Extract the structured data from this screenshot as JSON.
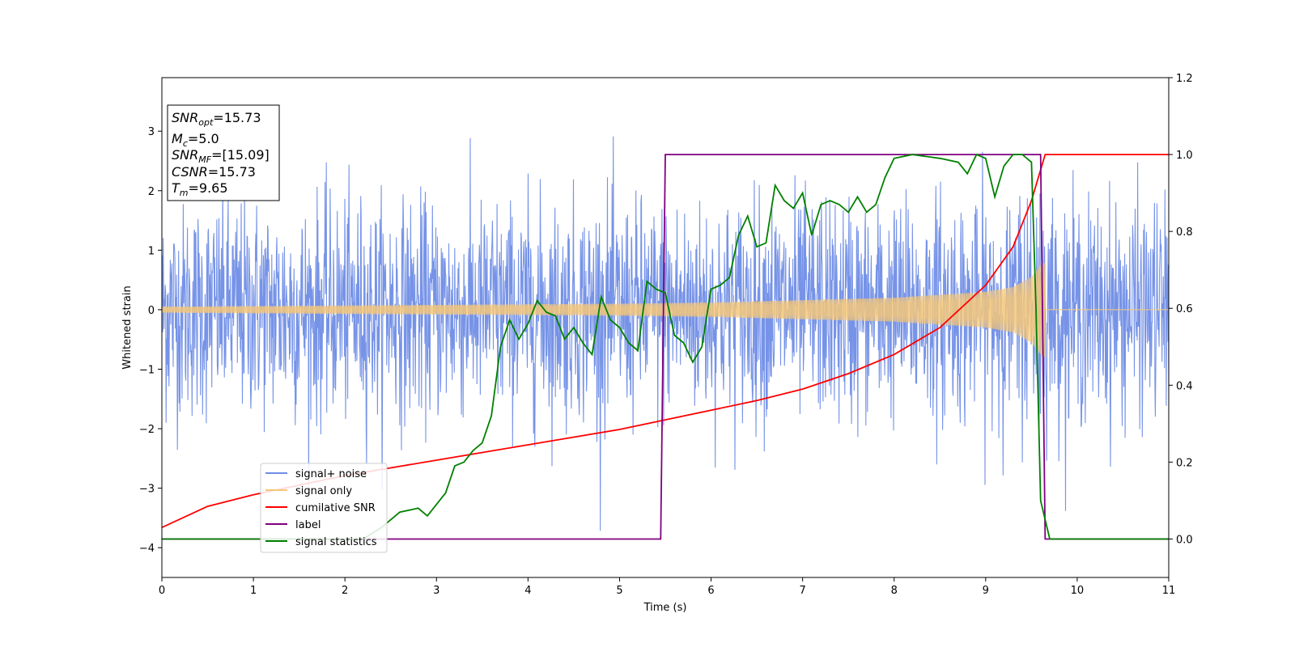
{
  "chart_data": {
    "type": "line",
    "xlabel": "Time (s)",
    "ylabel": "Whitened strain",
    "xlim": [
      0,
      11
    ],
    "ylim_left": [
      -4.5,
      3.9
    ],
    "ylim_right": [
      -0.1,
      1.2
    ],
    "x_ticks": [
      "0",
      "1",
      "2",
      "3",
      "4",
      "5",
      "6",
      "7",
      "8",
      "9",
      "10",
      "11"
    ],
    "y_ticks_left": [
      "−4",
      "−3",
      "−2",
      "−1",
      "0",
      "1",
      "2",
      "3"
    ],
    "y_ticks_right": [
      "0.0",
      "0.2",
      "0.4",
      "0.6",
      "0.8",
      "1.0",
      "1.2"
    ],
    "info_box": {
      "snr_opt": {
        "base": "SNR",
        "sub": "opt",
        "value": "=15.73"
      },
      "mc": {
        "base": "M",
        "sub": "c",
        "value": "=5.0"
      },
      "snr_mf": {
        "base": "SNR",
        "sub": "MF",
        "value": "=[15.09]"
      },
      "csnr": {
        "base": "CSNR",
        "value": "=15.73"
      },
      "tm": {
        "base": "T",
        "sub": "m",
        "value": "=9.65"
      }
    },
    "legend_placement": "lower-left",
    "series": [
      {
        "name": "signal+ noise",
        "color": "#6f8de6",
        "axis": "left",
        "description_type": "noise",
        "std": 0.9,
        "x_range": [
          0,
          11
        ]
      },
      {
        "name": "signal only",
        "color": "#f5c77a",
        "axis": "left",
        "description_type": "chirp",
        "envelope_x": [
          0,
          1,
          2,
          3,
          4,
          5,
          6,
          7,
          8,
          9,
          9.3,
          9.5,
          9.6,
          9.65
        ],
        "envelope_y": [
          0.05,
          0.06,
          0.07,
          0.08,
          0.09,
          0.1,
          0.12,
          0.16,
          0.2,
          0.3,
          0.38,
          0.55,
          0.75,
          0.8
        ]
      },
      {
        "name": "cumilative SNR",
        "color": "#ff0000",
        "axis": "right",
        "x": [
          0,
          0.5,
          1,
          1.5,
          2,
          2.5,
          3,
          3.5,
          4,
          4.5,
          5,
          5.5,
          6,
          6.5,
          7,
          7.5,
          8,
          8.5,
          9,
          9.3,
          9.5,
          9.65,
          11
        ],
        "y": [
          0.03,
          0.085,
          0.115,
          0.14,
          0.165,
          0.185,
          0.205,
          0.225,
          0.245,
          0.265,
          0.285,
          0.31,
          0.335,
          0.36,
          0.39,
          0.43,
          0.48,
          0.55,
          0.66,
          0.76,
          0.88,
          1.0,
          1.0
        ]
      },
      {
        "name": "label",
        "color": "#800080",
        "axis": "right",
        "x": [
          0,
          5.45,
          5.5,
          9.6,
          9.65,
          11
        ],
        "y": [
          0.0,
          0.0,
          1.0,
          1.0,
          0.0,
          0.0
        ]
      },
      {
        "name": "signal statistics",
        "color": "#008000",
        "axis": "right",
        "x": [
          0,
          2.2,
          2.4,
          2.6,
          2.8,
          2.9,
          3.0,
          3.1,
          3.2,
          3.3,
          3.4,
          3.5,
          3.6,
          3.7,
          3.8,
          3.9,
          4.0,
          4.1,
          4.2,
          4.3,
          4.4,
          4.5,
          4.6,
          4.7,
          4.8,
          4.9,
          5.0,
          5.1,
          5.2,
          5.3,
          5.4,
          5.5,
          5.6,
          5.7,
          5.8,
          5.9,
          6.0,
          6.1,
          6.2,
          6.3,
          6.4,
          6.5,
          6.6,
          6.7,
          6.8,
          6.9,
          7.0,
          7.1,
          7.2,
          7.3,
          7.4,
          7.5,
          7.6,
          7.7,
          7.8,
          7.9,
          8.0,
          8.2,
          8.5,
          8.7,
          8.8,
          8.9,
          9.0,
          9.1,
          9.2,
          9.3,
          9.4,
          9.5,
          9.55,
          9.6,
          9.7,
          9.8,
          11
        ],
        "y": [
          0.0,
          0.0,
          0.03,
          0.07,
          0.08,
          0.06,
          0.09,
          0.12,
          0.19,
          0.2,
          0.23,
          0.25,
          0.32,
          0.5,
          0.57,
          0.52,
          0.56,
          0.62,
          0.59,
          0.58,
          0.52,
          0.55,
          0.51,
          0.48,
          0.63,
          0.57,
          0.55,
          0.51,
          0.49,
          0.67,
          0.65,
          0.64,
          0.53,
          0.51,
          0.46,
          0.5,
          0.65,
          0.66,
          0.68,
          0.79,
          0.84,
          0.76,
          0.77,
          0.92,
          0.88,
          0.86,
          0.9,
          0.79,
          0.87,
          0.88,
          0.87,
          0.85,
          0.89,
          0.85,
          0.87,
          0.94,
          0.99,
          1.0,
          0.99,
          0.98,
          0.95,
          1.0,
          0.99,
          0.89,
          0.97,
          1.0,
          1.0,
          0.98,
          0.6,
          0.1,
          0.0,
          0.0,
          0.0
        ]
      }
    ]
  }
}
